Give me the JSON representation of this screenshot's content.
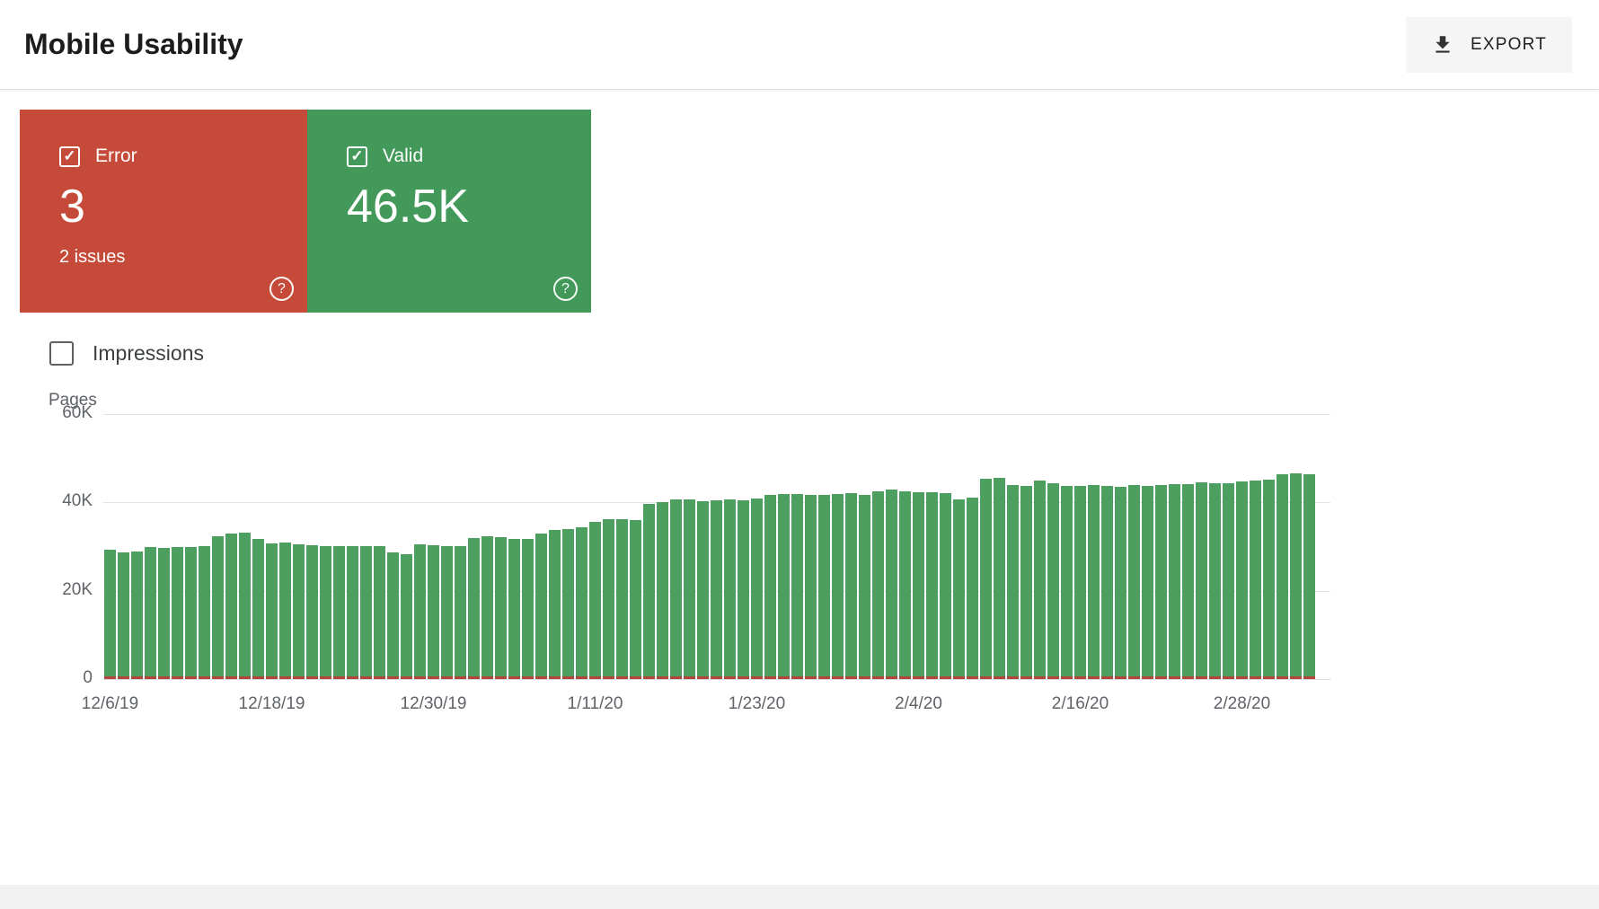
{
  "header": {
    "title": "Mobile Usability",
    "export_label": "EXPORT"
  },
  "cards": {
    "error": {
      "label": "Error",
      "value": "3",
      "issues": "2 issues",
      "checked": true
    },
    "valid": {
      "label": "Valid",
      "value": "46.5K",
      "checked": true
    }
  },
  "filters": {
    "impressions_label": "Impressions",
    "impressions_checked": false
  },
  "icons": {
    "check_glyph": "✓",
    "help_glyph": "?",
    "download_icon": "download-icon"
  },
  "colors": {
    "error_red": "#c64a3a",
    "valid_green": "#43995a",
    "bar_green": "#4d9f60",
    "bar_error_red": "#b2453c"
  },
  "chart_data": {
    "type": "bar",
    "title": "",
    "xlabel": "",
    "ylabel": "Pages",
    "ylim": [
      0,
      60000
    ],
    "grid": true,
    "legend": "none",
    "y_ticks": [
      "60K",
      "40K",
      "20K",
      "0"
    ],
    "x_ticks": [
      {
        "index": 0,
        "label": "12/6/19"
      },
      {
        "index": 12,
        "label": "12/18/19"
      },
      {
        "index": 24,
        "label": "12/30/19"
      },
      {
        "index": 36,
        "label": "1/11/20"
      },
      {
        "index": 48,
        "label": "1/23/20"
      },
      {
        "index": 60,
        "label": "2/4/20"
      },
      {
        "index": 72,
        "label": "2/16/20"
      },
      {
        "index": 84,
        "label": "2/28/20"
      }
    ],
    "series": [
      {
        "name": "Valid",
        "color": "#4d9f60",
        "values": [
          29300,
          28600,
          28800,
          29800,
          29700,
          29900,
          29800,
          30000,
          32300,
          33000,
          33200,
          31800,
          30800,
          31000,
          30500,
          30300,
          30200,
          30200,
          30100,
          30200,
          30100,
          28600,
          28300,
          30500,
          30400,
          30000,
          30000,
          32000,
          32300,
          32200,
          31700,
          31800,
          33000,
          33800,
          33900,
          34300,
          35600,
          36200,
          36200,
          36100,
          39700,
          40100,
          40600,
          40600,
          40200,
          40400,
          40600,
          40400,
          40800,
          41600,
          41900,
          41800,
          41700,
          41600,
          41800,
          42000,
          41600,
          42600,
          42900,
          42600,
          42400,
          42400,
          42200,
          40600,
          41000,
          45400,
          45600,
          43900,
          43800,
          44900,
          44400,
          43800,
          43700,
          43900,
          43800,
          43600,
          43900,
          43800,
          44000,
          44200,
          44100,
          44600,
          44400,
          44300,
          44800,
          45000,
          45100,
          46400,
          46500,
          46300
        ]
      },
      {
        "name": "Error",
        "color": "#b2453c",
        "constant_value": 3
      }
    ]
  }
}
